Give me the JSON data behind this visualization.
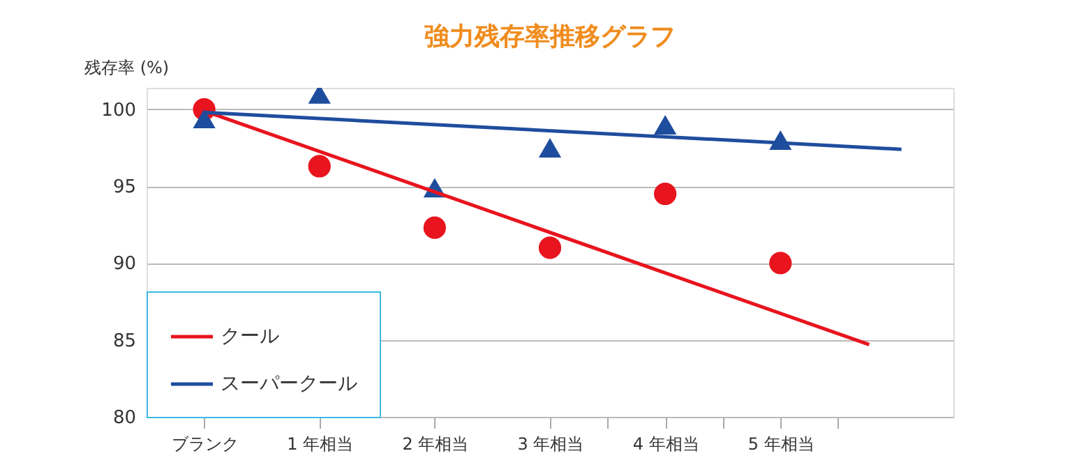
{
  "chart_data": {
    "type": "scatter",
    "title": "強力残存率推移グラフ",
    "ylabel": "残存率 (%)",
    "x": [
      0,
      1,
      2,
      3,
      4,
      5
    ],
    "xlim": [
      -0.5,
      6.5
    ],
    "xticks": [
      {
        "value": 0,
        "label": "ブランク"
      },
      {
        "value": 1,
        "label": "1 年相当"
      },
      {
        "value": 2,
        "label": "2 年相当"
      },
      {
        "value": 3,
        "label": "3 年相当"
      },
      {
        "value": 4,
        "label": "4 年相当"
      },
      {
        "value": 5,
        "label": "5 年相当"
      },
      {
        "value": 3.5,
        "label": null
      },
      {
        "value": 4.5,
        "label": null
      },
      {
        "value": 5.5,
        "label": null
      }
    ],
    "ylim": [
      80,
      101.4
    ],
    "yticks": [
      80,
      85,
      90,
      95,
      100
    ],
    "series": [
      {
        "marker": "circle",
        "color": "#e8141e",
        "values": [
          100,
          96.3,
          92.3,
          91.0,
          94.5,
          90.0
        ]
      },
      {
        "marker": "triangle",
        "color": "#1f4d9e",
        "values": [
          99.4,
          101.0,
          94.9,
          97.5,
          99.0,
          98.0
        ]
      },
      {
        "type": "line",
        "name": "クール",
        "color": "#e8141e",
        "x": [
          0,
          5.77
        ],
        "values": [
          99.9,
          84.7
        ]
      },
      {
        "type": "line",
        "name": "スーパークール",
        "color": "#1f4d9e",
        "x": [
          0,
          6.05
        ],
        "values": [
          99.8,
          97.4
        ]
      }
    ],
    "grid": "y",
    "legend": "bottom left"
  }
}
